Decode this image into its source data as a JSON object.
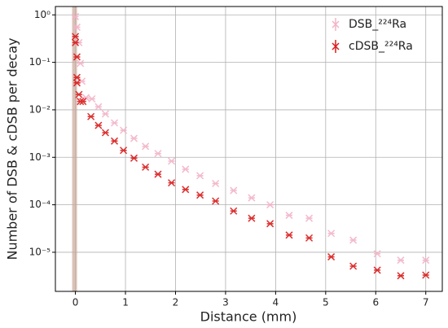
{
  "chart_data": {
    "type": "scatter",
    "xlabel": "Distance (mm)",
    "ylabel": "Number of DSB & cDSB per decay",
    "xlim": [
      -0.4,
      7.33
    ],
    "xticks": [
      0,
      1,
      2,
      3,
      4,
      5,
      6,
      7
    ],
    "ylim": [
      1.5e-06,
      1.5
    ],
    "log_y": true,
    "grid": true,
    "legend": "upper right",
    "yticks": [
      {
        "value": 1e-05,
        "label": "10⁻⁵"
      },
      {
        "value": 0.0001,
        "label": "10⁻⁴"
      },
      {
        "value": 0.001,
        "label": "10⁻³"
      },
      {
        "value": 0.01,
        "label": "10⁻²"
      },
      {
        "value": 0.1,
        "label": "10⁻¹"
      },
      {
        "value": 1,
        "label": "10⁰"
      }
    ],
    "series": [
      {
        "name": "DSB_²²⁴Ra",
        "color": "#f2b3c6",
        "x": [
          0,
          0.03,
          0.07,
          0.1,
          0.13,
          0.21,
          0.33,
          0.46,
          0.6,
          0.78,
          0.96,
          1.17,
          1.4,
          1.65,
          1.92,
          2.2,
          2.49,
          2.8,
          3.16,
          3.52,
          3.89,
          4.27,
          4.67,
          5.11,
          5.55,
          6.03,
          6.5,
          7
        ],
        "values": [
          0.92,
          0.55,
          0.26,
          0.095,
          0.04,
          0.018,
          0.017,
          0.0116,
          0.0082,
          0.0053,
          0.0037,
          0.0025,
          0.0017,
          0.0012,
          0.00083,
          0.00056,
          0.00041,
          0.00028,
          0.0002,
          0.00014,
          0.0001,
          6e-05,
          5.2e-05,
          2.5e-05,
          1.8e-05,
          9.3e-06,
          6.8e-06,
          6.8e-06
        ]
      },
      {
        "name": "cDSB_²²⁴Ra",
        "color": "#d91a1a",
        "x": [
          0,
          0,
          0.03,
          0.03,
          0.03,
          0.07,
          0.1,
          0.15,
          0.31,
          0.46,
          0.6,
          0.78,
          0.96,
          1.17,
          1.4,
          1.65,
          1.92,
          2.2,
          2.49,
          2.8,
          3.16,
          3.52,
          3.89,
          4.27,
          4.67,
          5.11,
          5.55,
          6.03,
          6.5,
          7
        ],
        "values": [
          0.35,
          0.26,
          0.13,
          0.048,
          0.037,
          0.021,
          0.015,
          0.015,
          0.0072,
          0.0047,
          0.0033,
          0.0022,
          0.0014,
          0.00096,
          0.00062,
          0.00044,
          0.00029,
          0.00021,
          0.00016,
          0.00012,
          7.4e-05,
          5.2e-05,
          4e-05,
          2.3e-05,
          2e-05,
          8e-06,
          5.1e-06,
          4.2e-06,
          3.2e-06,
          3.3e-06
        ]
      }
    ]
  }
}
